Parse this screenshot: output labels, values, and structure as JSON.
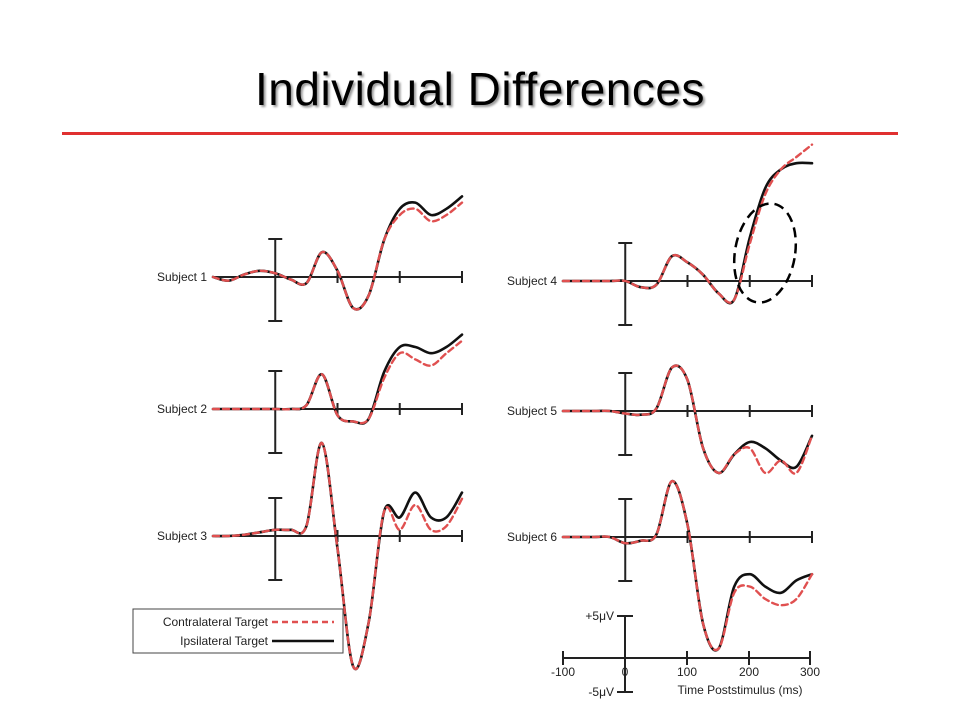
{
  "title": "Individual Differences",
  "colors": {
    "title_rule": "#e03030",
    "contralateral": "#e05050",
    "ipsilateral": "#111111",
    "highlight_ellipse": "#000000"
  },
  "chart_data": {
    "type": "line",
    "x_units": "ms",
    "x": [
      -100,
      -75,
      -50,
      -25,
      0,
      25,
      50,
      75,
      100,
      125,
      150,
      175,
      200,
      225,
      250,
      275,
      300
    ],
    "subjects": [
      {
        "label": "Subject 1",
        "series": [
          {
            "name": "Contralateral Target",
            "values": [
              0,
              -0.3,
              0.2,
              0.5,
              0.3,
              -0.2,
              -0.5,
              2.0,
              0.5,
              -2.5,
              -1.5,
              3.0,
              5.0,
              5.5,
              4.5,
              5.0,
              6.0
            ]
          },
          {
            "name": "Ipsilateral Target",
            "values": [
              0,
              -0.3,
              0.2,
              0.5,
              0.3,
              -0.2,
              -0.5,
              2.0,
              0.5,
              -2.5,
              -1.5,
              3.0,
              5.5,
              6.0,
              5.0,
              5.5,
              6.5
            ]
          }
        ]
      },
      {
        "label": "Subject 2",
        "series": [
          {
            "name": "Contralateral Target",
            "values": [
              0,
              0,
              0,
              0,
              0,
              0,
              0.3,
              2.8,
              -0.5,
              -1.0,
              -0.8,
              2.5,
              4.5,
              4.0,
              3.5,
              4.5,
              5.5
            ]
          },
          {
            "name": "Ipsilateral Target",
            "values": [
              0,
              0,
              0,
              0,
              0,
              0,
              0.3,
              2.8,
              -0.5,
              -1.0,
              -0.8,
              3.0,
              5.0,
              5.0,
              4.5,
              5.0,
              6.0
            ]
          }
        ]
      },
      {
        "label": "Subject 3",
        "series": [
          {
            "name": "Contralateral Target",
            "values": [
              0,
              0,
              0.1,
              0.3,
              0.5,
              0.5,
              0.8,
              7.5,
              -1.0,
              -10.5,
              -7.0,
              2.0,
              0.5,
              2.5,
              0.5,
              0.8,
              3.0
            ]
          },
          {
            "name": "Ipsilateral Target",
            "values": [
              0,
              0,
              0.1,
              0.3,
              0.5,
              0.5,
              0.8,
              7.5,
              -1.0,
              -10.5,
              -7.0,
              2.0,
              1.5,
              3.5,
              1.5,
              1.5,
              3.5
            ]
          }
        ]
      },
      {
        "label": "Subject 4",
        "series": [
          {
            "name": "Contralateral Target",
            "values": [
              0,
              0,
              0,
              0,
              0,
              -0.5,
              -0.3,
              2.0,
              1.5,
              0.5,
              -1.0,
              -1.5,
              3.0,
              7.0,
              9.0,
              10.0,
              11.0
            ]
          },
          {
            "name": "Ipsilateral Target",
            "values": [
              0,
              0,
              0,
              0,
              0,
              -0.5,
              -0.3,
              2.0,
              1.5,
              0.5,
              -1.0,
              -1.5,
              3.5,
              7.5,
              9.0,
              9.5,
              9.5
            ]
          }
        ]
      },
      {
        "label": "Subject 5",
        "series": [
          {
            "name": "Contralateral Target",
            "values": [
              0,
              0,
              0,
              0,
              -0.2,
              -0.3,
              0.2,
              3.5,
              2.5,
              -3.0,
              -5.0,
              -3.5,
              -3.0,
              -5.0,
              -4.0,
              -5.0,
              -2.0
            ]
          },
          {
            "name": "Ipsilateral Target",
            "values": [
              0,
              0,
              0,
              0,
              -0.2,
              -0.3,
              0.2,
              3.5,
              2.5,
              -3.0,
              -5.0,
              -3.5,
              -2.5,
              -3.0,
              -4.0,
              -4.5,
              -2.0
            ]
          }
        ]
      },
      {
        "label": "Subject 6",
        "series": [
          {
            "name": "Contralateral Target",
            "values": [
              0,
              0,
              0,
              0,
              -0.5,
              -0.3,
              0.2,
              4.5,
              1.0,
              -7.0,
              -9.0,
              -4.5,
              -4.0,
              -5.0,
              -5.5,
              -5.0,
              -3.0
            ]
          },
          {
            "name": "Ipsilateral Target",
            "values": [
              0,
              0,
              0,
              0,
              -0.5,
              -0.3,
              0.2,
              4.5,
              1.0,
              -7.0,
              -9.0,
              -4.0,
              -3.0,
              -4.0,
              -4.5,
              -3.5,
              -3.0
            ]
          }
        ]
      }
    ],
    "legend": [
      {
        "name": "Contralateral Target",
        "style": "dashed",
        "color": "#e05050"
      },
      {
        "name": "Ipsilateral Target",
        "style": "solid",
        "color": "#111111"
      }
    ],
    "legend_position": "bottom-left",
    "scale_bar": {
      "y_top_label": "+5μV",
      "y_bottom_label": "-5μV",
      "x_tick_labels": [
        "-100",
        "0",
        "100",
        "200",
        "300"
      ],
      "x_label": "Time Poststimulus (ms)"
    },
    "highlight": {
      "subject": "Subject 4",
      "x_range_ms": [
        185,
        260
      ]
    }
  }
}
